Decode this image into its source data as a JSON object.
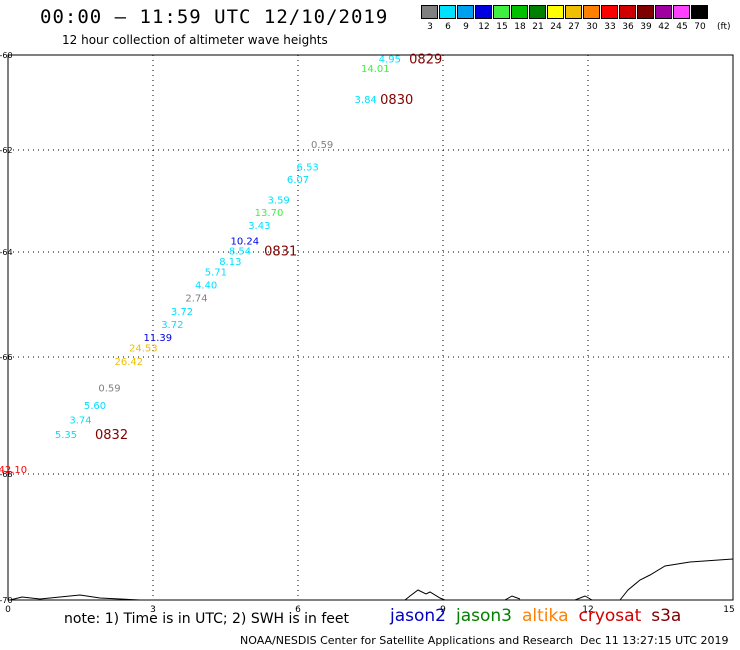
{
  "header": {
    "title": "00:00 – 11:59 UTC 12/10/2019",
    "subtitle": "12 hour collection of altimeter wave heights",
    "units": "(ft)"
  },
  "color_scale": [
    {
      "label": "3",
      "color": "#808080"
    },
    {
      "label": "6",
      "color": "#00e0ff"
    },
    {
      "label": "9",
      "color": "#00a0f0"
    },
    {
      "label": "12",
      "color": "#0000e0"
    },
    {
      "label": "15",
      "color": "#40f040"
    },
    {
      "label": "18",
      "color": "#00c000"
    },
    {
      "label": "21",
      "color": "#008000"
    },
    {
      "label": "24",
      "color": "#ffff00"
    },
    {
      "label": "27",
      "color": "#f0c000"
    },
    {
      "label": "30",
      "color": "#ff8000"
    },
    {
      "label": "33",
      "color": "#ff0000"
    },
    {
      "label": "36",
      "color": "#d00000"
    },
    {
      "label": "39",
      "color": "#800000"
    },
    {
      "label": "42",
      "color": "#a000a0"
    },
    {
      "label": "45",
      "color": "#ff40ff"
    },
    {
      "label": "70",
      "color": "#000000"
    }
  ],
  "chart_data": {
    "type": "scatter",
    "title": "00:00 – 11:59 UTC 12/10/2019",
    "subtitle": "12 hour collection of altimeter wave heights",
    "xlim": [
      0,
      15
    ],
    "ylim": [
      -70,
      -60
    ],
    "x_ticks": [
      "0",
      "3",
      "6",
      "9",
      "12",
      "15"
    ],
    "y_ticks": [
      "-60",
      "-62",
      "-64",
      "-66",
      "-68",
      "-70"
    ],
    "grid": true,
    "points": [
      {
        "x": 7.9,
        "y": -60.05,
        "label": "4.95",
        "color": "#00e0ff"
      },
      {
        "x": 7.6,
        "y": -60.25,
        "label": "14.01",
        "color": "#40f040"
      },
      {
        "x": 7.4,
        "y": -60.9,
        "label": "3.84",
        "color": "#00e0ff"
      },
      {
        "x": 6.5,
        "y": -61.85,
        "label": "0.59",
        "color": "#808080"
      },
      {
        "x": 6.2,
        "y": -62.3,
        "label": "6.53",
        "color": "#00e0ff"
      },
      {
        "x": 6.0,
        "y": -62.55,
        "label": "6.07",
        "color": "#00e0ff"
      },
      {
        "x": 5.6,
        "y": -62.95,
        "label": "3.59",
        "color": "#00e0ff"
      },
      {
        "x": 5.4,
        "y": -63.2,
        "label": "13.70",
        "color": "#40f040"
      },
      {
        "x": 5.2,
        "y": -63.45,
        "label": "3.43",
        "color": "#00e0ff"
      },
      {
        "x": 4.9,
        "y": -63.75,
        "label": "10.24",
        "color": "#0000e0"
      },
      {
        "x": 4.8,
        "y": -63.95,
        "label": "8.54",
        "color": "#00e0ff"
      },
      {
        "x": 4.6,
        "y": -64.15,
        "label": "8.13",
        "color": "#00e0ff"
      },
      {
        "x": 4.3,
        "y": -64.35,
        "label": "5.71",
        "color": "#00e0ff"
      },
      {
        "x": 4.1,
        "y": -64.6,
        "label": "4.40",
        "color": "#00e0ff"
      },
      {
        "x": 3.9,
        "y": -64.85,
        "label": "2.74",
        "color": "#808080"
      },
      {
        "x": 3.6,
        "y": -65.1,
        "label": "3.72",
        "color": "#00e0ff"
      },
      {
        "x": 3.4,
        "y": -65.35,
        "label": "3.72",
        "color": "#00e0ff"
      },
      {
        "x": 3.1,
        "y": -65.6,
        "label": "11.39",
        "color": "#0000e0"
      },
      {
        "x": 2.8,
        "y": -65.8,
        "label": "24.53",
        "color": "#f0c000"
      },
      {
        "x": 2.5,
        "y": -66.05,
        "label": "26.42",
        "color": "#f0c000"
      },
      {
        "x": 2.1,
        "y": -66.5,
        "label": "0.59",
        "color": "#808080"
      },
      {
        "x": 1.8,
        "y": -66.8,
        "label": "5.60",
        "color": "#00e0ff"
      },
      {
        "x": 1.5,
        "y": -67.05,
        "label": "3.74",
        "color": "#00e0ff"
      },
      {
        "x": 1.2,
        "y": -67.3,
        "label": "5.35",
        "color": "#00e0ff"
      },
      {
        "x": 0.1,
        "y": -67.9,
        "label": "42.10",
        "color": "#ff0000"
      }
    ],
    "annotations": [
      {
        "x": 8.3,
        "y": -60.05,
        "label": "0829",
        "color": "#800000"
      },
      {
        "x": 7.7,
        "y": -60.9,
        "label": "0830",
        "color": "#800000"
      },
      {
        "x": 5.3,
        "y": -63.95,
        "label": "0831",
        "color": "#800000"
      },
      {
        "x": 1.8,
        "y": -67.3,
        "label": "0832",
        "color": "#800000"
      }
    ]
  },
  "footer": {
    "note": "note:  1) Time is in UTC; 2) SWH is in feet",
    "satellites": [
      {
        "name": "jason2",
        "color": "#0000c0"
      },
      {
        "name": "jason3",
        "color": "#008000"
      },
      {
        "name": "altika",
        "color": "#ff8000"
      },
      {
        "name": "cryosat",
        "color": "#d00000"
      },
      {
        "name": "s3a",
        "color": "#800000"
      }
    ],
    "credit": "NOAA/NESDIS Center for Satellite Applications and Research",
    "timestamp": "Dec 11 13:27:15 UTC 2019"
  }
}
